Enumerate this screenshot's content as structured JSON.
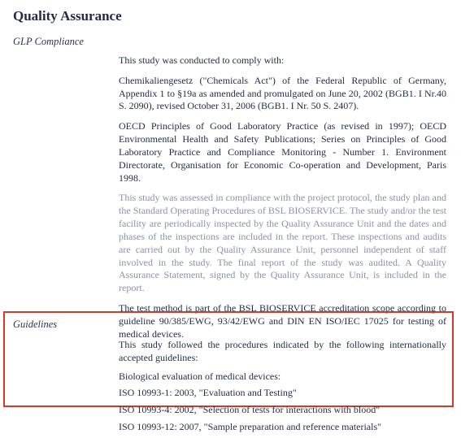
{
  "title": "Quality Assurance",
  "glp": {
    "label": "GLP Compliance",
    "p1": "This study was conducted to comply with:",
    "p2": "Chemikaliengesetz (\"Chemicals Act\") of the Federal Republic of Germany, Appendix 1 to §19a as amended and promulgated on June 20, 2002 (BGB1. I Nr.40 S. 2090), revised October 31, 2006 (BGB1. I Nr. 50 S. 2407).",
    "p3": "OECD Principles of Good Laboratory Practice (as revised in 1997); OECD Environmental Health and Safety Publications; Series on Principles of Good Laboratory Practice and Compliance Monitoring - Number 1. Environment Directorate, Organisation for Economic Co-operation and Development, Paris 1998.",
    "p4": "This study was assessed in compliance with the project protocol, the study plan and the Standard Operating Procedures of BSL BIOSERVICE. The study and/or the test facility are periodically inspected by the Quality Assurance Unit and the dates and phases of the inspections are included in the report. These inspections and audits are carried out by the Quality Assurance Unit, personnel independent of staff involved in the study. The final report of the study was audited. A Quality Assurance Statement, signed by the Quality Assurance Unit, is included in the report.",
    "p5": "The test method is part of the BSL BIOSERVICE accreditation scope according to guideline 90/385/EWG, 93/42/EWG and DIN EN ISO/IEC 17025 for testing of medical devices."
  },
  "guidelines": {
    "label": "Guidelines",
    "intro": "This study followed the procedures indicated by the following internationally accepted guidelines:",
    "heading": "Biological evaluation of medical devices:",
    "items": [
      "ISO 10993-1: 2003, \"Evaluation and Testing\"",
      "ISO 10993-4: 2002, \"Selection of tests for interactions with blood\"",
      "ISO 10993-12: 2007, \"Sample preparation and reference materials\""
    ]
  },
  "colors": {
    "text": "#1f2a44",
    "faded": "#8a92a8",
    "callout_border": "#d23a2a",
    "background": "#ffffff"
  }
}
